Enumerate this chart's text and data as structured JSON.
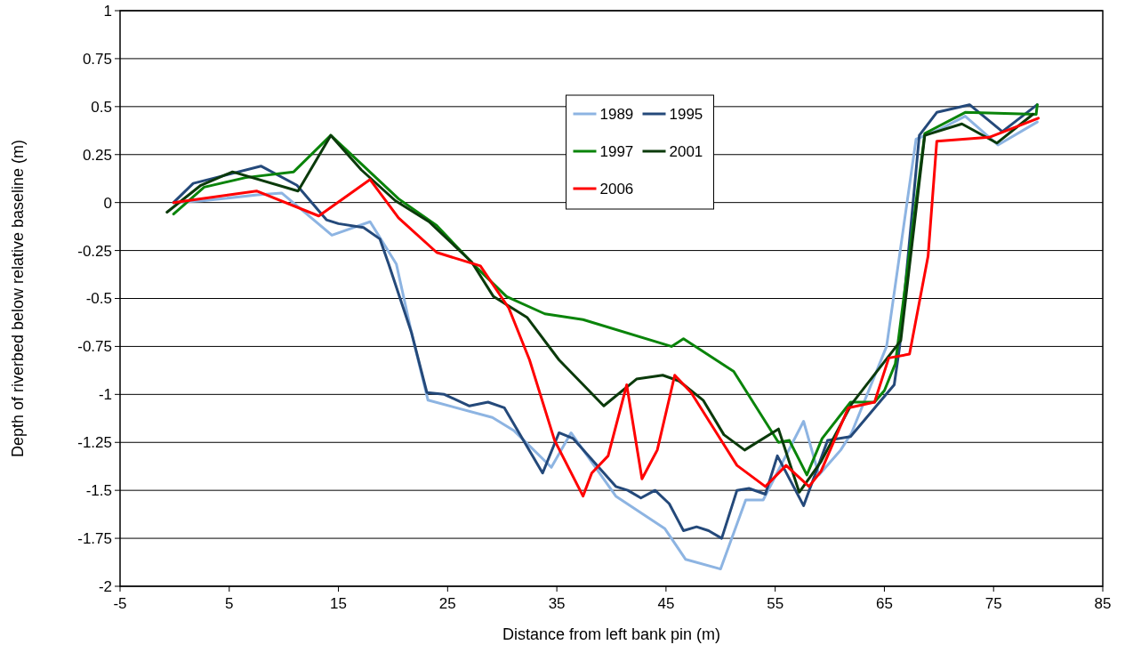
{
  "chart_data": {
    "type": "line",
    "xlabel": "Distance from left bank pin (m)",
    "ylabel": "Depth of riverbed below relative baseline (m)",
    "xlim": [
      -5,
      85
    ],
    "xticks": [
      -5,
      5,
      15,
      25,
      35,
      45,
      55,
      65,
      75,
      85
    ],
    "ylim": [
      -2,
      1
    ],
    "yticks": [
      -2,
      -1.75,
      -1.5,
      -1.25,
      -1,
      -0.75,
      -0.5,
      -0.25,
      0,
      0.25,
      0.5,
      0.75,
      1
    ],
    "grid": "y",
    "legend": "top",
    "line_style": "solid",
    "marker": "none",
    "series": [
      {
        "name": "1989",
        "color": "#8db4e2",
        "x": [
          -0.1,
          2.7,
          7.6,
          9.8,
          14.4,
          17.9,
          20.3,
          21.7,
          23.2,
          29.1,
          31.1,
          34.5,
          36.3,
          40.4,
          44.9,
          46.8,
          50,
          52.3,
          53.9,
          57.6,
          59,
          61,
          62,
          65.2,
          67.9,
          70,
          72.4,
          75.4,
          79
        ],
        "values": [
          0,
          0.01,
          0.04,
          0.05,
          -0.17,
          -0.1,
          -0.32,
          -0.68,
          -1.03,
          -1.12,
          -1.19,
          -1.38,
          -1.2,
          -1.53,
          -1.7,
          -1.86,
          -1.91,
          -1.55,
          -1.55,
          -1.14,
          -1.42,
          -1.29,
          -1.2,
          -0.75,
          0.33,
          0.38,
          0.45,
          0.3,
          0.42
        ]
      },
      {
        "name": "1995",
        "color": "#24497a",
        "x": [
          -0.1,
          1.7,
          3.8,
          7.9,
          11.2,
          13.9,
          15,
          17.3,
          18.8,
          19.6,
          21.7,
          23.1,
          24.7,
          27,
          28.7,
          30.2,
          33.7,
          35.2,
          36.5,
          40.4,
          41.5,
          42.7,
          44,
          45.3,
          46.6,
          47.8,
          48.9,
          50.1,
          51.5,
          52.6,
          54.1,
          55.2,
          57.6,
          59.8,
          61.9,
          65.9,
          66.4,
          68.2,
          69.8,
          72.8,
          75.8,
          79
        ],
        "values": [
          0,
          0.1,
          0.13,
          0.19,
          0.09,
          -0.09,
          -0.11,
          -0.13,
          -0.19,
          -0.32,
          -0.68,
          -0.99,
          -1,
          -1.06,
          -1.04,
          -1.07,
          -1.41,
          -1.2,
          -1.23,
          -1.48,
          -1.5,
          -1.54,
          -1.5,
          -1.57,
          -1.71,
          -1.69,
          -1.71,
          -1.75,
          -1.5,
          -1.49,
          -1.52,
          -1.32,
          -1.58,
          -1.24,
          -1.22,
          -0.95,
          -0.75,
          0.35,
          0.47,
          0.51,
          0.37,
          0.51
        ]
      },
      {
        "name": "1997",
        "color": "#0a840a",
        "x": [
          -0.1,
          2.7,
          6.5,
          10.9,
          14.3,
          17.5,
          20.5,
          24,
          27.5,
          30.4,
          33.9,
          37.4,
          45.5,
          46.6,
          51.2,
          55.3,
          56.3,
          57.9,
          59.3,
          61.9,
          64.1,
          65,
          66,
          68.7,
          72.4,
          78.9,
          79
        ],
        "values": [
          -0.06,
          0.08,
          0.13,
          0.16,
          0.35,
          0.18,
          0.02,
          -0.12,
          -0.33,
          -0.49,
          -0.58,
          -0.61,
          -0.75,
          -0.71,
          -0.88,
          -1.25,
          -1.24,
          -1.42,
          -1.23,
          -1.04,
          -1.04,
          -0.98,
          -0.84,
          0.36,
          0.47,
          0.46,
          0.51
        ]
      },
      {
        "name": "2001",
        "color": "#0b3a0b",
        "x": [
          -0.7,
          2.4,
          5.3,
          11.3,
          14.3,
          17.1,
          20.2,
          23.3,
          27.2,
          29.2,
          32.3,
          35.2,
          39.3,
          42.3,
          44.7,
          46.2,
          48.4,
          50.3,
          52.2,
          55.3,
          57.2,
          59.2,
          62,
          66.5,
          68.7,
          72.1,
          75.3,
          78.6
        ],
        "values": [
          -0.05,
          0.09,
          0.16,
          0.06,
          0.35,
          0.17,
          0.01,
          -0.1,
          -0.31,
          -0.49,
          -0.6,
          -0.82,
          -1.06,
          -0.92,
          -0.9,
          -0.93,
          -1.03,
          -1.21,
          -1.29,
          -1.18,
          -1.51,
          -1.35,
          -1.05,
          -0.72,
          0.35,
          0.41,
          0.31,
          0.46
        ]
      },
      {
        "name": "2006",
        "color": "#ff0000",
        "x": [
          -0.1,
          7.5,
          13.2,
          17.9,
          20.5,
          24,
          28,
          30.6,
          32.5,
          34.8,
          37.4,
          38.2,
          39.7,
          41.4,
          42.8,
          44.2,
          45.8,
          47.3,
          51.5,
          54.1,
          56,
          58.1,
          59.2,
          61.7,
          64.1,
          65.4,
          67.3,
          69,
          69.8,
          74.6,
          79.1
        ],
        "values": [
          0,
          0.06,
          -0.07,
          0.12,
          -0.08,
          -0.26,
          -0.33,
          -0.55,
          -0.82,
          -1.24,
          -1.53,
          -1.41,
          -1.32,
          -0.95,
          -1.44,
          -1.29,
          -0.9,
          -0.99,
          -1.37,
          -1.48,
          -1.37,
          -1.48,
          -1.4,
          -1.07,
          -1.04,
          -0.81,
          -0.79,
          -0.28,
          0.32,
          0.34,
          0.44
        ]
      }
    ]
  }
}
